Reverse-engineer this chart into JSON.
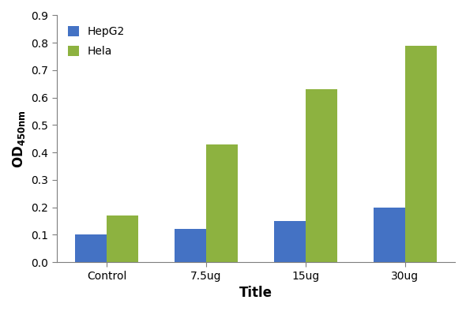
{
  "categories": [
    "Control",
    "7.5ug",
    "15ug",
    "30ug"
  ],
  "hepg2_values": [
    0.1,
    0.12,
    0.15,
    0.2
  ],
  "hela_values": [
    0.17,
    0.43,
    0.63,
    0.79
  ],
  "hepg2_color": "#4472C4",
  "hela_color": "#8DB240",
  "bar_width": 0.32,
  "ylim": [
    0,
    0.9
  ],
  "yticks": [
    0,
    0.1,
    0.2,
    0.3,
    0.4,
    0.5,
    0.6,
    0.7,
    0.8,
    0.9
  ],
  "xlabel": "Title",
  "legend_labels": [
    "HepG2",
    "Hela"
  ],
  "background_color": "#ffffff",
  "xlabel_fontsize": 12,
  "ylabel_fontsize": 12,
  "tick_fontsize": 10,
  "legend_fontsize": 10,
  "spine_color": "#7f7f7f"
}
